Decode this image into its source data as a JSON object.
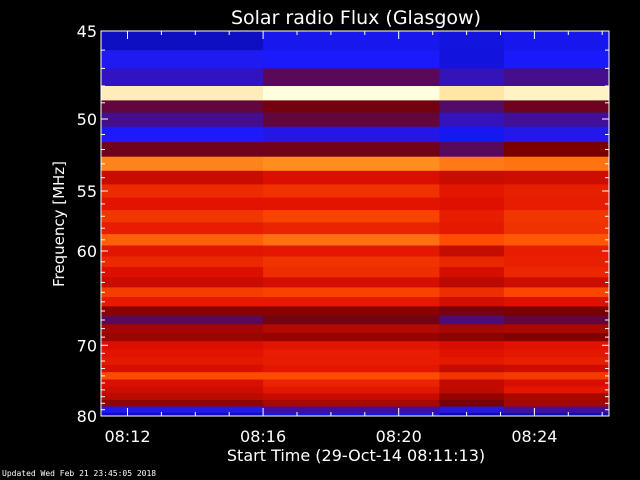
{
  "chart_data": {
    "type": "heatmap",
    "title": "Solar radio Flux (Glasgow)",
    "ylabel": "Frequency [MHz]",
    "xlabel": "Start Time (29-Oct-14 08:11:13)",
    "start_time": "08:11:13",
    "x_unit": "minutes after 08:00",
    "xlim": [
      11.22,
      26.2
    ],
    "x_ticks": [
      {
        "value": 12,
        "label": "08:12"
      },
      {
        "value": 16,
        "label": "08:16"
      },
      {
        "value": 20,
        "label": "08:20"
      },
      {
        "value": 24,
        "label": "08:24"
      }
    ],
    "y_scale": "reciprocal",
    "ylim": [
      45,
      80
    ],
    "y_ticks": [
      45,
      50,
      55,
      60,
      70,
      80
    ],
    "grid": false,
    "colormap": [
      "#00007a",
      "#1a1aff",
      "#7a0000",
      "#e01000",
      "#ff5000",
      "#ffb030",
      "#ffffe0"
    ],
    "scan_boundaries": [
      16.0,
      21.2,
      23.1
    ],
    "bands": [
      {
        "freq": 45.5,
        "level": 0.12
      },
      {
        "freq": 46.5,
        "level": 0.15
      },
      {
        "freq": 47.5,
        "level": 0.22
      },
      {
        "freq": 48.5,
        "level": 0.98
      },
      {
        "freq": 49.2,
        "level": 0.28
      },
      {
        "freq": 50.0,
        "level": 0.24
      },
      {
        "freq": 51.0,
        "level": 0.18
      },
      {
        "freq": 52.0,
        "level": 0.3
      },
      {
        "freq": 53.0,
        "level": 0.74
      },
      {
        "freq": 54.0,
        "level": 0.46
      },
      {
        "freq": 55.0,
        "level": 0.56
      },
      {
        "freq": 56.0,
        "level": 0.5
      },
      {
        "freq": 57.0,
        "level": 0.58
      },
      {
        "freq": 58.0,
        "level": 0.55
      },
      {
        "freq": 59.0,
        "level": 0.7
      },
      {
        "freq": 60.0,
        "level": 0.5
      },
      {
        "freq": 61.0,
        "level": 0.55
      },
      {
        "freq": 62.0,
        "level": 0.52
      },
      {
        "freq": 63.0,
        "level": 0.45
      },
      {
        "freq": 64.0,
        "level": 0.62
      },
      {
        "freq": 65.0,
        "level": 0.5
      },
      {
        "freq": 66.0,
        "level": 0.34
      },
      {
        "freq": 67.0,
        "level": 0.3
      },
      {
        "freq": 68.0,
        "level": 0.4
      },
      {
        "freq": 69.0,
        "level": 0.36
      },
      {
        "freq": 70.0,
        "level": 0.48
      },
      {
        "freq": 71.0,
        "level": 0.5
      },
      {
        "freq": 72.0,
        "level": 0.52
      },
      {
        "freq": 73.0,
        "level": 0.46
      },
      {
        "freq": 74.0,
        "level": 0.63
      },
      {
        "freq": 75.0,
        "level": 0.5
      },
      {
        "freq": 76.0,
        "level": 0.48
      },
      {
        "freq": 77.0,
        "level": 0.42
      },
      {
        "freq": 78.0,
        "level": 0.38
      },
      {
        "freq": 79.0,
        "level": 0.2
      },
      {
        "freq": 80.0,
        "level": 0.1
      }
    ]
  },
  "footer": {
    "updated": "Updated Wed Feb 21 23:45:05 2018"
  }
}
